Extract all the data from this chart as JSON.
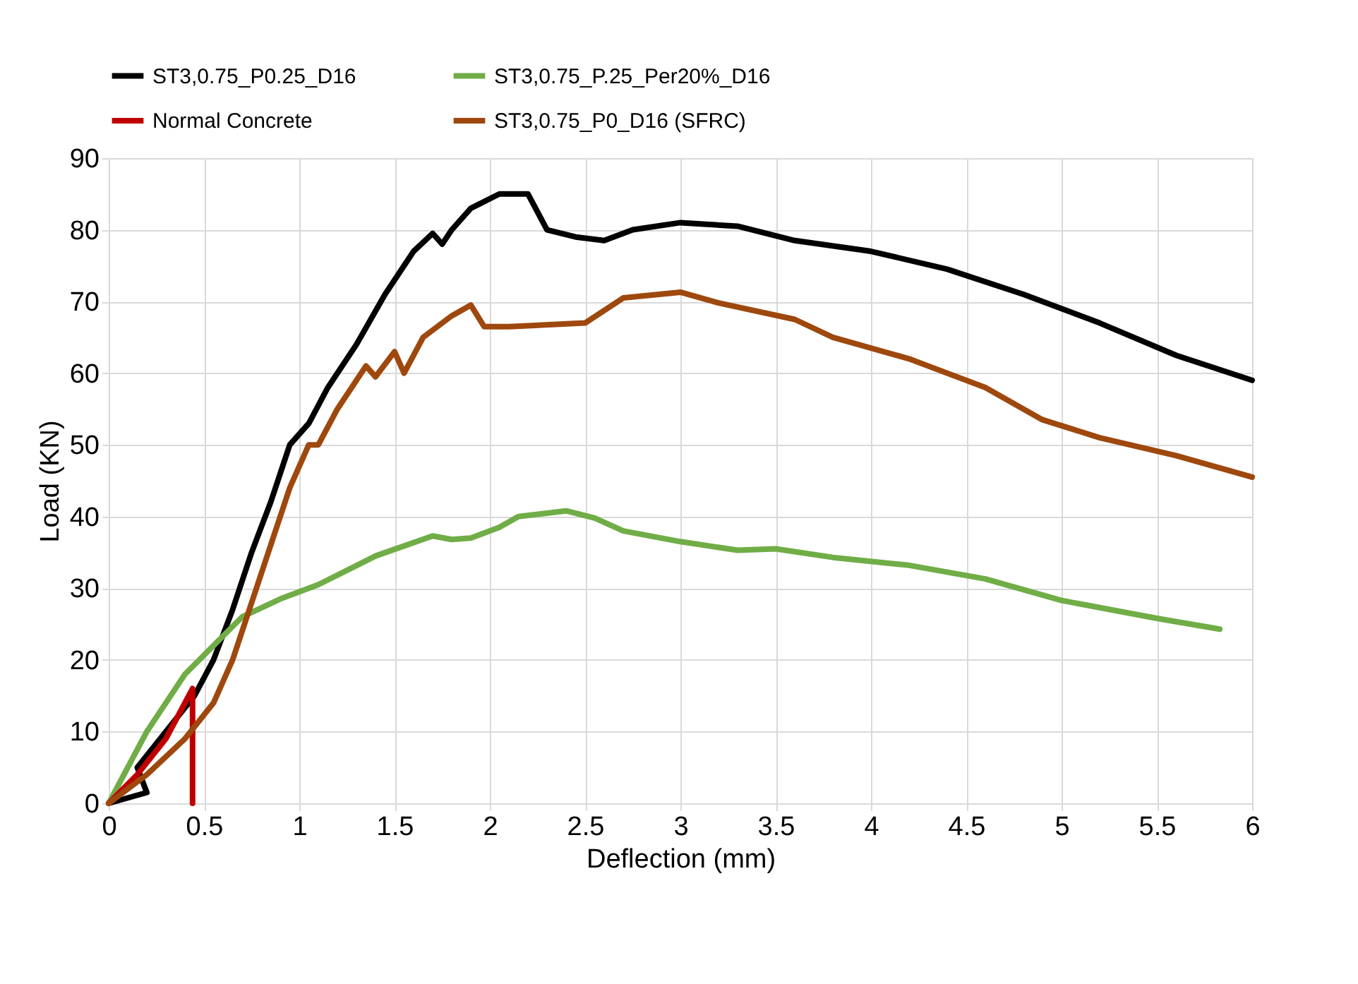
{
  "chart_data": {
    "type": "line",
    "xlabel": "Deflection (mm)",
    "ylabel": "Load (KN)",
    "xlim": [
      0,
      6
    ],
    "ylim": [
      0,
      90
    ],
    "xticks": [
      0,
      0.5,
      1,
      1.5,
      2,
      2.5,
      3,
      3.5,
      4,
      4.5,
      5,
      5.5,
      6
    ],
    "yticks": [
      0,
      10,
      20,
      30,
      40,
      50,
      60,
      70,
      80,
      90
    ],
    "grid": true,
    "legend": "top",
    "marker": "none",
    "line_style": "solid",
    "series": [
      {
        "name": "ST3,0.75_P0.25_D16",
        "color": "#000000",
        "x": [
          0,
          0.2,
          0.15,
          0.3,
          0.45,
          0.55,
          0.65,
          0.75,
          0.85,
          0.95,
          1.05,
          1.15,
          1.3,
          1.45,
          1.6,
          1.7,
          1.75,
          1.8,
          1.9,
          2.05,
          2.2,
          2.3,
          2.45,
          2.6,
          2.75,
          3.0,
          3.3,
          3.6,
          4.0,
          4.4,
          4.8,
          5.2,
          5.6,
          6.0
        ],
        "values": [
          0,
          1.5,
          5,
          10,
          15,
          20,
          27,
          35,
          42,
          50,
          53,
          58,
          64,
          71,
          77,
          79.5,
          78,
          80,
          83,
          85,
          85,
          80,
          79,
          78.5,
          80,
          81,
          80.5,
          78.5,
          77,
          74.5,
          71,
          67,
          62.5,
          59
        ]
      },
      {
        "name": "ST3,0.75_P.25_Per20%_D16",
        "color": "#70ad47",
        "x": [
          0,
          0.2,
          0.4,
          0.55,
          0.7,
          0.9,
          1.1,
          1.4,
          1.7,
          1.8,
          1.9,
          2.05,
          2.15,
          2.4,
          2.55,
          2.7,
          3.0,
          3.3,
          3.5,
          3.8,
          4.2,
          4.6,
          5.0,
          5.5,
          5.83
        ],
        "values": [
          0,
          10,
          18,
          22,
          26,
          28.5,
          30.5,
          34.5,
          37.3,
          36.8,
          37,
          38.5,
          40,
          40.8,
          39.8,
          38,
          36.5,
          35.3,
          35.5,
          34.3,
          33.2,
          31.3,
          28.3,
          25.8,
          24.3
        ]
      },
      {
        "name": "Normal Concrete",
        "color": "#c00000",
        "x": [
          0,
          0.15,
          0.3,
          0.42,
          0.44,
          0.44
        ],
        "values": [
          0,
          4,
          9,
          15,
          16,
          0
        ]
      },
      {
        "name": "ST3,0.75_P0_D16 (SFRC)",
        "color": "#9e480e",
        "x": [
          0,
          0.2,
          0.4,
          0.55,
          0.65,
          0.75,
          0.85,
          0.95,
          1.05,
          1.1,
          1.2,
          1.35,
          1.4,
          1.5,
          1.55,
          1.65,
          1.8,
          1.9,
          1.97,
          2.1,
          2.5,
          2.7,
          3.0,
          3.2,
          3.6,
          3.8,
          4.2,
          4.6,
          4.9,
          5.2,
          5.6,
          6.0
        ],
        "values": [
          0,
          4,
          9,
          14,
          20,
          28,
          36,
          44,
          50,
          50,
          55,
          61,
          59.5,
          63,
          60,
          65,
          68,
          69.5,
          66.5,
          66.5,
          67,
          70.5,
          71.3,
          69.8,
          67.5,
          65,
          62,
          58,
          53.5,
          51,
          48.5,
          45.5
        ]
      }
    ]
  }
}
